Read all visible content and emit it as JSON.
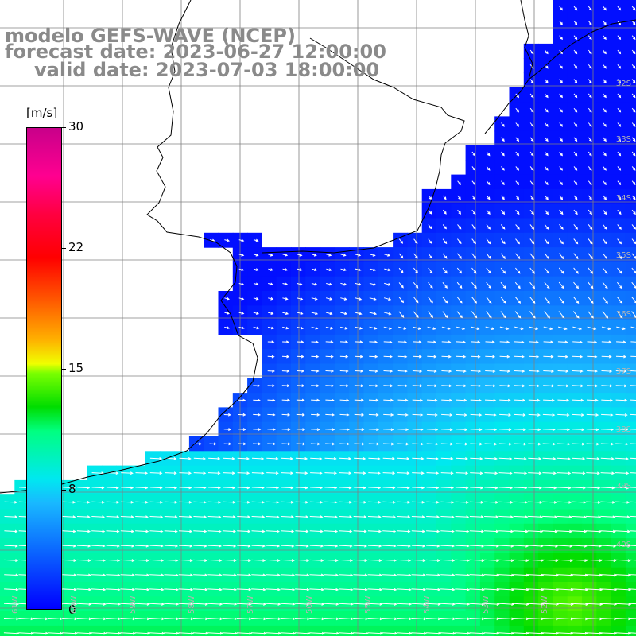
{
  "title": {
    "line1": "modelo GEFS-WAVE (NCEP)",
    "line2": "forecast date: 2023-06-27 12:00:00",
    "line3": "valid date: 2023-07-03 18:00:00"
  },
  "colorbar": {
    "unit": "[m/s]",
    "ticks": [
      "30",
      "22",
      "15",
      "8",
      "0"
    ],
    "range": [
      0,
      30
    ]
  },
  "map": {
    "variable": "wind speed",
    "legend_units": "m/s",
    "colors": {
      "land": "#ffffff",
      "coastline": "#000000",
      "grid": "#808080",
      "arrow": "#ffffff",
      "calm_sea": "#0022ff",
      "moderate_sea": "#19c8ff",
      "strong_sea": "#33e633"
    },
    "lat_labels": [
      "32S",
      "33S",
      "34S",
      "35S",
      "36S",
      "37S",
      "38S",
      "39S",
      "40S"
    ],
    "lon_labels": [
      "61W",
      "60W",
      "59W",
      "58W",
      "57W",
      "56W",
      "55W",
      "54W",
      "53W",
      "52W"
    ]
  }
}
